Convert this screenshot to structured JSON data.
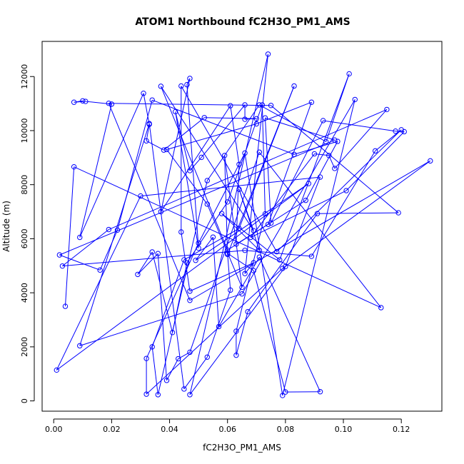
{
  "chart_data": {
    "type": "line",
    "title": "ATOM1 Northbound fC2H3O_PM1_AMS",
    "xlabel": "fC2H3O_PM1_AMS",
    "ylabel": "Altitude (m)",
    "xlim": [
      -0.004,
      0.134
    ],
    "ylim": [
      -380,
      13300
    ],
    "x_ticks": [
      0.0,
      0.02,
      0.04,
      0.06,
      0.08,
      0.1,
      0.12
    ],
    "x_tick_labels": [
      "0.00",
      "0.02",
      "0.04",
      "0.06",
      "0.08",
      "0.10",
      "0.12"
    ],
    "y_ticks": [
      0,
      2000,
      4000,
      6000,
      8000,
      10000,
      12000
    ],
    "y_tick_labels": [
      "0",
      "2000",
      "4000",
      "6000",
      "8000",
      "10000",
      "12000"
    ],
    "grid": false,
    "marker": "open-circle",
    "line_color": "#0000ff",
    "series": [
      {
        "x": [
          0.01,
          0.007,
          0.011,
          0.02,
          0.009,
          0.031,
          0.033,
          0.032,
          0.038,
          0.052,
          0.07,
          0.066,
          0.066,
          0.051,
          0.047,
          0.042,
          0.05,
          0.046,
          0.047,
          0.037,
          0.061,
          0.064,
          0.063,
          0.074,
          0.089,
          0.07,
          0.039,
          0.053,
          0.065,
          0.059,
          0.06,
          0.083,
          0.064,
          0.045,
          0.034,
          0.036,
          0.053,
          0.071,
          0.094,
          0.102,
          0.078,
          0.058,
          0.071,
          0.064,
          0.069,
          0.037,
          0.06,
          0.087,
          0.098,
          0.083,
          0.034,
          0.022,
          0.016,
          0.002,
          0.097,
          0.073,
          0.075,
          0.093,
          0.118,
          0.121,
          0.101,
          0.068,
          0.09,
          0.095,
          0.097,
          0.115,
          0.019,
          0.003,
          0.066,
          0.089,
          0.111,
          0.12,
          0.077,
          0.044,
          0.044,
          0.047,
          0.069,
          0.066,
          0.074,
          0.047,
          0.08,
          0.092,
          0.03,
          0.001,
          0.088,
          0.049,
          0.055,
          0.057,
          0.071,
          0.092,
          0.08,
          0.069,
          0.06,
          0.061,
          0.053,
          0.045,
          0.033,
          0.009,
          0.065,
          0.104,
          0.079,
          0.066,
          0.05,
          0.032,
          0.032,
          0.079,
          0.13,
          0.047,
          0.019,
          0.075,
          0.119,
          0.091,
          0.067,
          0.063,
          0.063,
          0.073,
          0.072,
          0.06,
          0.046,
          0.041,
          0.034,
          0.029,
          0.036,
          0.039,
          0.043,
          0.047,
          0.071,
          0.113,
          0.007,
          0.004
        ],
        "y": [
          11100,
          11050,
          11080,
          10980,
          6050,
          11380,
          10230,
          9620,
          9280,
          10480,
          10440,
          10420,
          10950,
          9010,
          8520,
          10700,
          5650,
          11700,
          11930,
          7000,
          10920,
          8750,
          5800,
          6530,
          11050,
          10250,
          9300,
          7280,
          4200,
          9080,
          5420,
          11650,
          6380,
          5220,
          2000,
          230,
          8150,
          10950,
          9590,
          12100,
          5220,
          6930,
          5570,
          7830,
          6300,
          11640,
          5580,
          7420,
          9600,
          9120,
          11130,
          6320,
          4840,
          5400,
          9650,
          10470,
          6580,
          10370,
          9980,
          9960,
          7780,
          6050,
          9140,
          9080,
          8600,
          10780,
          6340,
          4990,
          5570,
          5350,
          9250,
          10030,
          5520,
          11650,
          6250,
          4060,
          5110,
          4710,
          12830,
          230,
          4970,
          8280,
          7580,
          1140,
          8040,
          5200,
          6060,
          2750,
          5320,
          340,
          330,
          4820,
          5460,
          4100,
          1620,
          440,
          10260,
          2040,
          3960,
          11150,
          200,
          9170,
          5840,
          1570,
          250,
          4900,
          8880,
          3720,
          11010,
          10930,
          6960,
          6930,
          3300,
          1690,
          2580,
          6920,
          10950,
          7360,
          5110,
          2530,
          5510,
          4680,
          5450,
          760,
          1560,
          1800,
          9200,
          3450,
          8660,
          3500
        ]
      }
    ]
  }
}
